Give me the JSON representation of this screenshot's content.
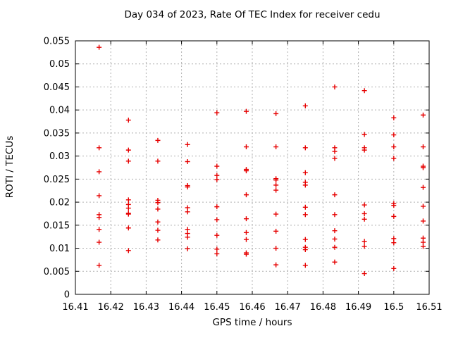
{
  "chart_data": {
    "type": "scatter",
    "title": "Day 034 of 2023, Rate Of TEC Index for receiver cedu",
    "xlabel": "GPS time / hours",
    "ylabel": "ROTI / TECUs",
    "xlim": [
      16.41,
      16.51
    ],
    "ylim": [
      0,
      0.055
    ],
    "grid": true,
    "legend": "none",
    "background_color": "#ffffff",
    "border_color": "#000000",
    "grid_color": "#b0b0b0",
    "marker": {
      "shape": "plus",
      "color": "#e60000"
    },
    "xticks": {
      "values": [
        16.41,
        16.42,
        16.43,
        16.44,
        16.45,
        16.46,
        16.47,
        16.48,
        16.49,
        16.5,
        16.51
      ],
      "labels": [
        "16.41",
        "16.42",
        "16.43",
        "16.44",
        "16.45",
        "16.46",
        "16.47",
        "16.48",
        "16.49",
        "16.5",
        "16.51"
      ]
    },
    "yticks": {
      "values": [
        0,
        0.005,
        0.01,
        0.015,
        0.02,
        0.025,
        0.03,
        0.035,
        0.04,
        0.045,
        0.05,
        0.055
      ],
      "labels": [
        "0",
        "0.005",
        "0.01",
        "0.015",
        "0.02",
        "0.025",
        "0.03",
        "0.035",
        "0.04",
        "0.045",
        "0.05",
        "0.055"
      ]
    },
    "series": [
      {
        "name": "ROTI",
        "points": [
          [
            16.4167,
            0.0536
          ],
          [
            16.4167,
            0.0318
          ],
          [
            16.4167,
            0.0266
          ],
          [
            16.4167,
            0.0214
          ],
          [
            16.4167,
            0.0173
          ],
          [
            16.4167,
            0.0167
          ],
          [
            16.4167,
            0.0141
          ],
          [
            16.4167,
            0.0113
          ],
          [
            16.4167,
            0.0063
          ],
          [
            16.425,
            0.0378
          ],
          [
            16.425,
            0.0313
          ],
          [
            16.425,
            0.0289
          ],
          [
            16.425,
            0.0205
          ],
          [
            16.425,
            0.0195
          ],
          [
            16.425,
            0.0187
          ],
          [
            16.425,
            0.0176
          ],
          [
            16.425,
            0.0174
          ],
          [
            16.425,
            0.0144
          ],
          [
            16.425,
            0.0095
          ],
          [
            16.4333,
            0.0334
          ],
          [
            16.4333,
            0.0289
          ],
          [
            16.4333,
            0.0204
          ],
          [
            16.4333,
            0.0199
          ],
          [
            16.4333,
            0.0185
          ],
          [
            16.4333,
            0.0157
          ],
          [
            16.4333,
            0.0139
          ],
          [
            16.4333,
            0.0118
          ],
          [
            16.4417,
            0.0325
          ],
          [
            16.4417,
            0.0288
          ],
          [
            16.4417,
            0.0236
          ],
          [
            16.4417,
            0.0233
          ],
          [
            16.4417,
            0.0188
          ],
          [
            16.4417,
            0.0179
          ],
          [
            16.4417,
            0.0141
          ],
          [
            16.4417,
            0.0132
          ],
          [
            16.4417,
            0.0124
          ],
          [
            16.4417,
            0.0099
          ],
          [
            16.45,
            0.0394
          ],
          [
            16.45,
            0.0278
          ],
          [
            16.45,
            0.0258
          ],
          [
            16.45,
            0.0249
          ],
          [
            16.45,
            0.019
          ],
          [
            16.45,
            0.0162
          ],
          [
            16.45,
            0.0128
          ],
          [
            16.45,
            0.0098
          ],
          [
            16.45,
            0.0088
          ],
          [
            16.4583,
            0.0397
          ],
          [
            16.4583,
            0.032
          ],
          [
            16.4583,
            0.0271
          ],
          [
            16.4583,
            0.0268
          ],
          [
            16.4583,
            0.0216
          ],
          [
            16.4583,
            0.0164
          ],
          [
            16.4583,
            0.0134
          ],
          [
            16.4583,
            0.0119
          ],
          [
            16.4583,
            0.009
          ],
          [
            16.4583,
            0.0087
          ],
          [
            16.4667,
            0.0392
          ],
          [
            16.4667,
            0.032
          ],
          [
            16.4667,
            0.0251
          ],
          [
            16.4667,
            0.0248
          ],
          [
            16.4667,
            0.0237
          ],
          [
            16.4667,
            0.0226
          ],
          [
            16.4667,
            0.0174
          ],
          [
            16.4667,
            0.0137
          ],
          [
            16.4667,
            0.01
          ],
          [
            16.4667,
            0.0064
          ],
          [
            16.475,
            0.0409
          ],
          [
            16.475,
            0.0318
          ],
          [
            16.475,
            0.0264
          ],
          [
            16.475,
            0.0243
          ],
          [
            16.475,
            0.0237
          ],
          [
            16.475,
            0.0189
          ],
          [
            16.475,
            0.0173
          ],
          [
            16.475,
            0.0119
          ],
          [
            16.475,
            0.0102
          ],
          [
            16.475,
            0.0097
          ],
          [
            16.475,
            0.0063
          ],
          [
            16.4833,
            0.045
          ],
          [
            16.4833,
            0.0318
          ],
          [
            16.4833,
            0.031
          ],
          [
            16.4833,
            0.0295
          ],
          [
            16.4833,
            0.0216
          ],
          [
            16.4833,
            0.0173
          ],
          [
            16.4833,
            0.0138
          ],
          [
            16.4833,
            0.012
          ],
          [
            16.4833,
            0.0102
          ],
          [
            16.4833,
            0.007
          ],
          [
            16.4917,
            0.0442
          ],
          [
            16.4917,
            0.0347
          ],
          [
            16.4917,
            0.0318
          ],
          [
            16.4917,
            0.0313
          ],
          [
            16.4917,
            0.0194
          ],
          [
            16.4917,
            0.0175
          ],
          [
            16.4917,
            0.0163
          ],
          [
            16.4917,
            0.0115
          ],
          [
            16.4917,
            0.0104
          ],
          [
            16.4917,
            0.0045
          ],
          [
            16.5,
            0.0383
          ],
          [
            16.5,
            0.0346
          ],
          [
            16.5,
            0.032
          ],
          [
            16.5,
            0.0295
          ],
          [
            16.5,
            0.0197
          ],
          [
            16.5,
            0.0193
          ],
          [
            16.5,
            0.0169
          ],
          [
            16.5,
            0.0121
          ],
          [
            16.5,
            0.0112
          ],
          [
            16.5,
            0.0056
          ],
          [
            16.5083,
            0.0389
          ],
          [
            16.5083,
            0.032
          ],
          [
            16.5083,
            0.0278
          ],
          [
            16.5083,
            0.0275
          ],
          [
            16.5083,
            0.0232
          ],
          [
            16.5083,
            0.0191
          ],
          [
            16.5083,
            0.0159
          ],
          [
            16.5083,
            0.0122
          ],
          [
            16.5083,
            0.0113
          ],
          [
            16.5083,
            0.0104
          ]
        ]
      }
    ]
  }
}
